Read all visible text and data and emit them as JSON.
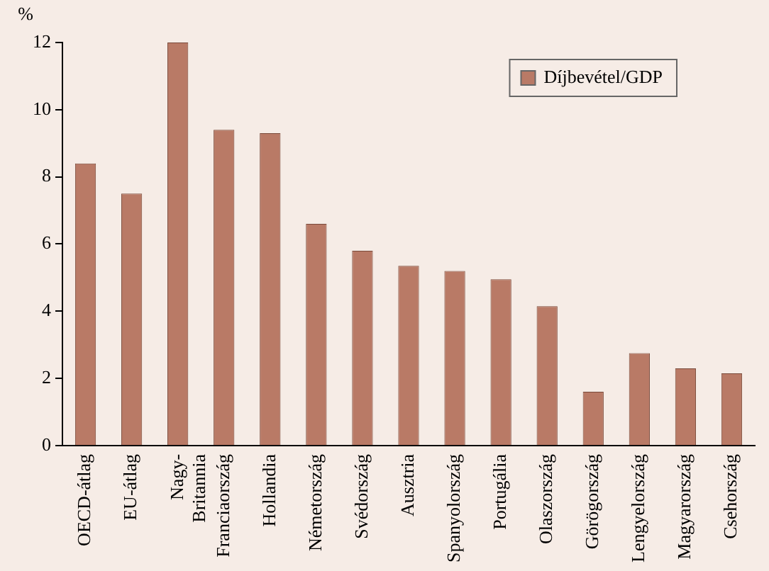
{
  "chart_data": {
    "type": "bar",
    "ylabel": "%",
    "categories": [
      "OECD-átlag",
      "EU-átlag",
      "Nagy-\nBritannia",
      "Franciaország",
      "Hollandia",
      "Németország",
      "Svédország",
      "Ausztria",
      "Spanyolország",
      "Portugália",
      "Olaszország",
      "Görögország",
      "Lengyelország",
      "Magyarország",
      "Csehország"
    ],
    "series": [
      {
        "name": "Díjbevétel/GDP",
        "color": "#b97a66",
        "values": [
          8.4,
          7.5,
          12.0,
          9.4,
          9.3,
          6.6,
          5.8,
          5.35,
          5.2,
          4.95,
          4.15,
          1.6,
          2.75,
          2.3,
          2.15
        ]
      }
    ],
    "ylim": [
      0,
      12
    ],
    "yticks": [
      0,
      2,
      4,
      6,
      8,
      10,
      12
    ],
    "grid": false,
    "legend": "top right"
  }
}
